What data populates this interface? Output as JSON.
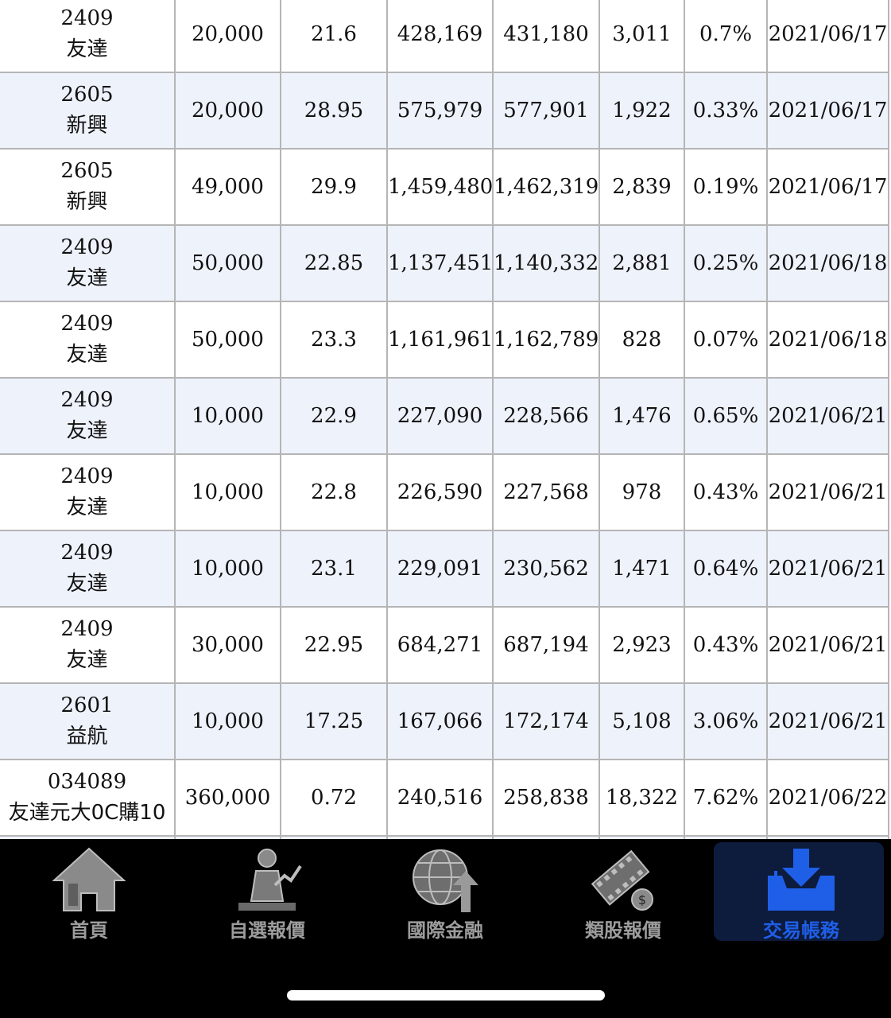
{
  "trades": [
    {
      "code": "2409",
      "name": "友達",
      "shares": "20,000",
      "price": "21.6",
      "cost": "428,169",
      "value": "431,180",
      "profit": "3,011",
      "rate": "0.7%",
      "date": "2021/06/17"
    },
    {
      "code": "2605",
      "name": "新興",
      "shares": "20,000",
      "price": "28.95",
      "cost": "575,979",
      "value": "577,901",
      "profit": "1,922",
      "rate": "0.33%",
      "date": "2021/06/17"
    },
    {
      "code": "2605",
      "name": "新興",
      "shares": "49,000",
      "price": "29.9",
      "cost": "1,459,480",
      "value": "1,462,319",
      "profit": "2,839",
      "rate": "0.19%",
      "date": "2021/06/17"
    },
    {
      "code": "2409",
      "name": "友達",
      "shares": "50,000",
      "price": "22.85",
      "cost": "1,137,451",
      "value": "1,140,332",
      "profit": "2,881",
      "rate": "0.25%",
      "date": "2021/06/18"
    },
    {
      "code": "2409",
      "name": "友達",
      "shares": "50,000",
      "price": "23.3",
      "cost": "1,161,961",
      "value": "1,162,789",
      "profit": "828",
      "rate": "0.07%",
      "date": "2021/06/18"
    },
    {
      "code": "2409",
      "name": "友達",
      "shares": "10,000",
      "price": "22.9",
      "cost": "227,090",
      "value": "228,566",
      "profit": "1,476",
      "rate": "0.65%",
      "date": "2021/06/21"
    },
    {
      "code": "2409",
      "name": "友達",
      "shares": "10,000",
      "price": "22.8",
      "cost": "226,590",
      "value": "227,568",
      "profit": "978",
      "rate": "0.43%",
      "date": "2021/06/21"
    },
    {
      "code": "2409",
      "name": "友達",
      "shares": "10,000",
      "price": "23.1",
      "cost": "229,091",
      "value": "230,562",
      "profit": "1,471",
      "rate": "0.64%",
      "date": "2021/06/21"
    },
    {
      "code": "2409",
      "name": "友達",
      "shares": "30,000",
      "price": "22.95",
      "cost": "684,271",
      "value": "687,194",
      "profit": "2,923",
      "rate": "0.43%",
      "date": "2021/06/21"
    },
    {
      "code": "2601",
      "name": "益航",
      "shares": "10,000",
      "price": "17.25",
      "cost": "167,066",
      "value": "172,174",
      "profit": "5,108",
      "rate": "3.06%",
      "date": "2021/06/21"
    },
    {
      "code": "034089",
      "name": "友達元大0C購10",
      "shares": "360,000",
      "price": "0.72",
      "cost": "240,516",
      "value": "258,838",
      "profit": "18,322",
      "rate": "7.62%",
      "date": "2021/06/22"
    },
    {
      "code": "",
      "name": "",
      "shares": "",
      "price": "",
      "cost": "",
      "value": "",
      "profit": "",
      "rate": "",
      "date": ""
    }
  ],
  "tabbar": {
    "tabs": [
      {
        "label": "首頁",
        "icon": "home-icon"
      },
      {
        "label": "自選報價",
        "icon": "user-chart-icon"
      },
      {
        "label": "國際金融",
        "icon": "globe-upload-icon"
      },
      {
        "label": "類股報價",
        "icon": "film-coin-icon"
      },
      {
        "label": "交易帳務",
        "icon": "tray-download-icon"
      }
    ],
    "active_index": 4
  },
  "colors": {
    "link": "#1c2fd1",
    "profit": "#e0141e",
    "row_alt": "#eef2fb",
    "tab_inactive": "#9c9c9c",
    "tab_active": "#1f5fe8"
  }
}
